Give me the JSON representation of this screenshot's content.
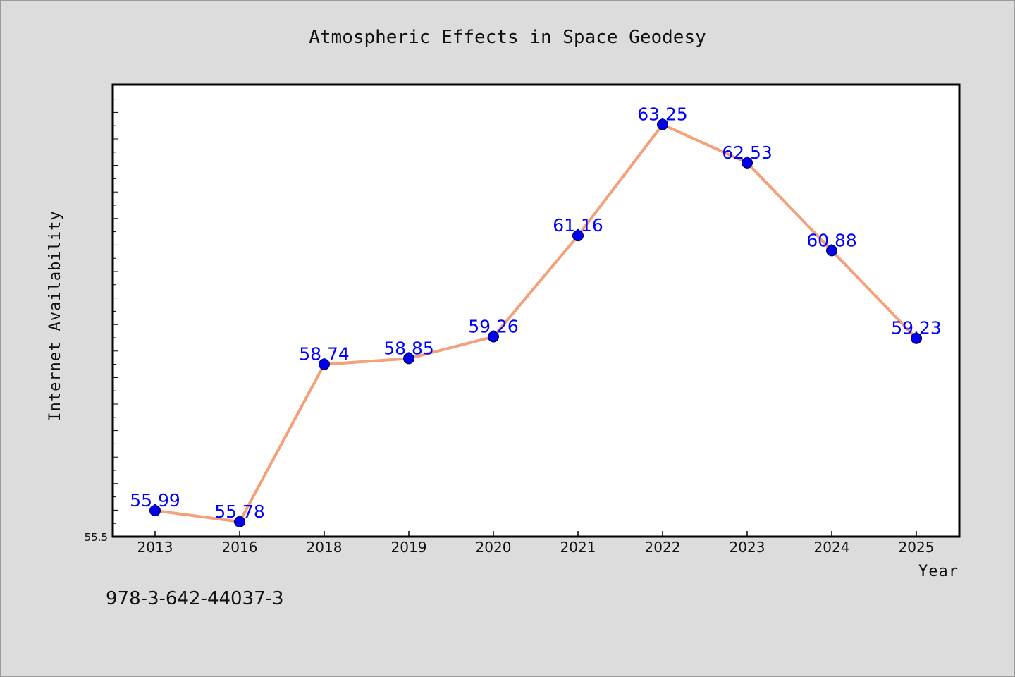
{
  "chart_data": {
    "type": "line",
    "title": "Atmospheric Effects in Space Geodesy",
    "xlabel": "Year",
    "ylabel": "Internet Availability",
    "categories": [
      "2013",
      "2016",
      "2018",
      "2019",
      "2020",
      "2021",
      "2022",
      "2023",
      "2024",
      "2025"
    ],
    "series": [
      {
        "values": [
          55.99,
          55.78,
          58.74,
          58.85,
          59.26,
          61.16,
          63.25,
          62.53,
          60.88,
          59.23
        ],
        "line_color": "#f4a07a",
        "marker_color": "#0000ee"
      }
    ],
    "data_label_color": "#0000ff",
    "ylim": [
      55.5,
      64.0
    ],
    "ytick_labels": [
      "55.5"
    ],
    "grid": false,
    "legend": "none"
  },
  "footer": {
    "code": "978-3-642-44037-3"
  }
}
